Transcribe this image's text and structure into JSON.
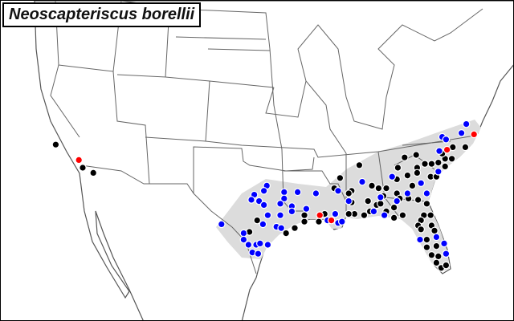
{
  "title": "Neoscapteriscus borellii",
  "colors": {
    "black_records": "#000000",
    "blue_records": "#0000ff",
    "red_records": "#ff0000",
    "range": "#dcdcdc",
    "borders": "#555555"
  },
  "records": {
    "red": [
      [
        -116.9,
        34.1
      ],
      [
        -91.9,
        29.8
      ],
      [
        -90.7,
        29.4
      ],
      [
        -78.7,
        34.9
      ],
      [
        -75.9,
        36.1
      ]
    ],
    "blue": [
      [
        -102.1,
        29.1
      ],
      [
        -97.4,
        32.1
      ],
      [
        -98.7,
        31.4
      ],
      [
        -99.0,
        31.0
      ],
      [
        -98.2,
        30.9
      ],
      [
        -97.7,
        31.7
      ],
      [
        -97.7,
        30.6
      ],
      [
        -95.6,
        31.6
      ],
      [
        -95.6,
        31.1
      ],
      [
        -96.0,
        30.7
      ],
      [
        -94.8,
        30.5
      ],
      [
        -94.8,
        30.1
      ],
      [
        -94.2,
        31.6
      ],
      [
        -92.3,
        31.5
      ],
      [
        -93.3,
        30.3
      ],
      [
        -97.3,
        29.8
      ],
      [
        -96.0,
        29.8
      ],
      [
        -97.8,
        29.1
      ],
      [
        -96.4,
        28.9
      ],
      [
        -95.9,
        28.8
      ],
      [
        -99.8,
        28.4
      ],
      [
        -99.8,
        27.9
      ],
      [
        -99.3,
        27.5
      ],
      [
        -98.5,
        27.5
      ],
      [
        -98.1,
        27.6
      ],
      [
        -97.3,
        27.5
      ],
      [
        -98.9,
        26.9
      ],
      [
        -98.3,
        26.8
      ],
      [
        -90.0,
        31.7
      ],
      [
        -88.9,
        30.9
      ],
      [
        -90.3,
        29.9
      ],
      [
        -91.1,
        29.4
      ],
      [
        -90.0,
        29.2
      ],
      [
        -89.6,
        29.3
      ],
      [
        -87.5,
        32.4
      ],
      [
        -85.6,
        31.2
      ],
      [
        -85.2,
        29.8
      ],
      [
        -86.3,
        30.1
      ],
      [
        -84.4,
        32.8
      ],
      [
        -81.4,
        32.3
      ],
      [
        -80.8,
        31.5
      ],
      [
        -79.6,
        33.2
      ],
      [
        -82.8,
        31.5
      ],
      [
        -83.9,
        30.9
      ],
      [
        -79.5,
        34.8
      ],
      [
        -79.2,
        35.9
      ],
      [
        -78.8,
        35.7
      ],
      [
        -77.2,
        36.2
      ],
      [
        -76.7,
        36.9
      ],
      [
        -81.5,
        27.9
      ],
      [
        -79.8,
        28.1
      ],
      [
        -79.0,
        27.6
      ],
      [
        -78.8,
        26.8
      ]
    ],
    "black": [
      [
        -119.3,
        35.3
      ],
      [
        -116.5,
        33.5
      ],
      [
        -115.4,
        33.1
      ],
      [
        -99.2,
        28.5
      ],
      [
        -98.4,
        29.4
      ],
      [
        -95.4,
        28.4
      ],
      [
        -94.5,
        28.8
      ],
      [
        -93.5,
        29.3
      ],
      [
        -93.5,
        29.8
      ],
      [
        -92.0,
        29.3
      ],
      [
        -91.4,
        29.9
      ],
      [
        -89.8,
        32.7
      ],
      [
        -90.4,
        31.9
      ],
      [
        -88.6,
        31.7
      ],
      [
        -87.8,
        33.7
      ],
      [
        -88.6,
        30.8
      ],
      [
        -88.3,
        29.9
      ],
      [
        -87.3,
        29.8
      ],
      [
        -86.5,
        32.1
      ],
      [
        -85.8,
        31.9
      ],
      [
        -85.0,
        31.9
      ],
      [
        -86.9,
        30.9
      ],
      [
        -86.0,
        30.6
      ],
      [
        -84.2,
        30.4
      ],
      [
        -83.3,
        29.8
      ],
      [
        -84.2,
        29.6
      ],
      [
        -83.8,
        33.5
      ],
      [
        -83.9,
        32.6
      ],
      [
        -83.1,
        34.3
      ],
      [
        -81.9,
        34.5
      ],
      [
        -82.8,
        32.9
      ],
      [
        -81.8,
        33.5
      ],
      [
        -81.0,
        33.8
      ],
      [
        -80.3,
        33.8
      ],
      [
        -79.6,
        33.9
      ],
      [
        -78.9,
        34.2
      ],
      [
        -78.1,
        35.1
      ],
      [
        -76.8,
        35.1
      ],
      [
        -78.2,
        34.2
      ],
      [
        -81.8,
        33.1
      ],
      [
        -80.4,
        32.8
      ],
      [
        -79.8,
        32.8
      ],
      [
        -83.9,
        31.5
      ],
      [
        -83.6,
        31.1
      ],
      [
        -82.7,
        31.1
      ],
      [
        -81.7,
        31.0
      ],
      [
        -80.8,
        30.7
      ],
      [
        -82.3,
        32.1
      ],
      [
        -81.1,
        29.8
      ],
      [
        -81.4,
        29.4
      ],
      [
        -80.4,
        29.8
      ],
      [
        -81.7,
        29.0
      ],
      [
        -81.4,
        28.7
      ],
      [
        -80.3,
        29.0
      ],
      [
        -80.0,
        28.6
      ],
      [
        -80.8,
        27.9
      ],
      [
        -79.8,
        27.4
      ],
      [
        -80.8,
        27.3
      ],
      [
        -80.3,
        26.7
      ],
      [
        -79.6,
        26.6
      ],
      [
        -79.8,
        26.1
      ],
      [
        -79.3,
        25.7
      ],
      [
        -78.8,
        25.9
      ],
      [
        -85.6,
        30.7
      ],
      [
        -85.0,
        30.1
      ],
      [
        -86.7,
        30.1
      ],
      [
        -88.9,
        29.9
      ],
      [
        -88.9,
        31.5
      ],
      [
        -85.3,
        31.3
      ],
      [
        -78.9,
        33.6
      ],
      [
        -79.2,
        34.6
      ]
    ]
  }
}
